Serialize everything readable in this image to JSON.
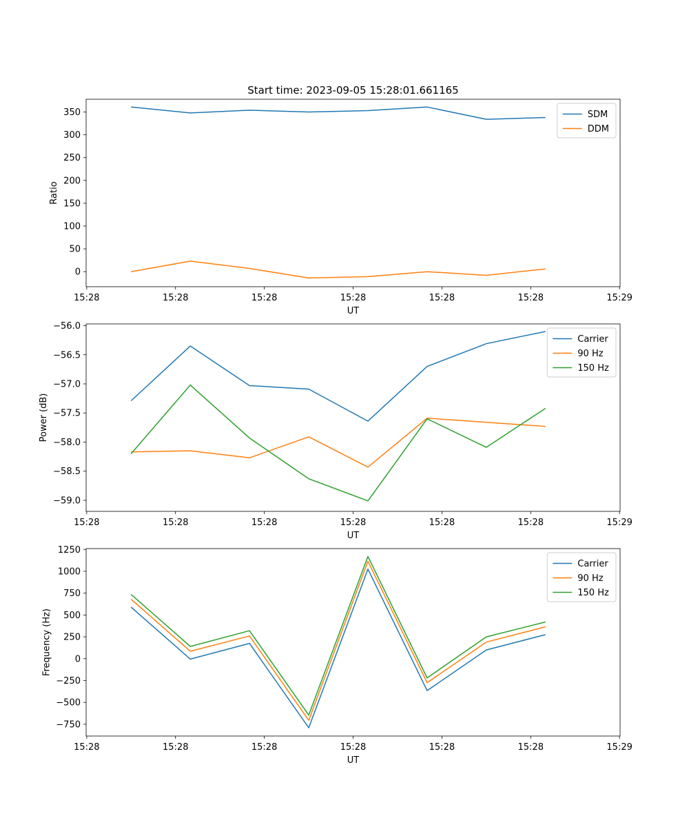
{
  "title": "Start time: 2023-09-05 15:28:01.661165",
  "colors": {
    "series": [
      "#1f77b4",
      "#ff7f0e",
      "#2ca02c"
    ]
  },
  "chart_data": [
    {
      "type": "line",
      "title": "Start time: 2023-09-05 15:28:01.661165",
      "xlabel": "UT",
      "ylabel": "Ratio",
      "x": [
        0,
        1,
        2,
        3,
        4,
        5,
        6,
        7
      ],
      "xlim": [
        -0.76,
        8.26
      ],
      "xticks": [
        -0.75,
        0.75,
        2.25,
        3.75,
        5.25,
        6.75,
        8.25
      ],
      "xtick_labels": [
        "15:28",
        "15:28",
        "15:28",
        "15:28",
        "15:28",
        "15:28",
        "15:29"
      ],
      "ylim": [
        -33,
        378
      ],
      "yticks": [
        0,
        50,
        100,
        150,
        200,
        250,
        300,
        350
      ],
      "ytick_labels": [
        "0",
        "50",
        "100",
        "150",
        "200",
        "250",
        "300",
        "350"
      ],
      "legend_position": "top-right",
      "series": [
        {
          "name": "SDM",
          "values": [
            361,
            348,
            354,
            350,
            353,
            361,
            334,
            338
          ]
        },
        {
          "name": "DDM",
          "values": [
            0,
            23,
            7,
            -14,
            -11,
            0,
            -8,
            6
          ]
        }
      ]
    },
    {
      "type": "line",
      "xlabel": "UT",
      "ylabel": "Power (dB)",
      "x": [
        0,
        1,
        2,
        3,
        4,
        5,
        6,
        7
      ],
      "xlim": [
        -0.76,
        8.26
      ],
      "xticks": [
        -0.75,
        0.75,
        2.25,
        3.75,
        5.25,
        6.75,
        8.25
      ],
      "xtick_labels": [
        "15:28",
        "15:28",
        "15:28",
        "15:28",
        "15:28",
        "15:28",
        "15:29"
      ],
      "ylim": [
        -59.19,
        -55.97
      ],
      "yticks": [
        -59.0,
        -58.5,
        -58.0,
        -57.5,
        -57.0,
        -56.5,
        -56.0
      ],
      "ytick_labels": [
        "−59.0",
        "−58.5",
        "−58.0",
        "−57.5",
        "−57.0",
        "−56.5",
        "−56.0"
      ],
      "legend_position": "top-right",
      "series": [
        {
          "name": "Carrier",
          "values": [
            -57.29,
            -56.35,
            -57.03,
            -57.09,
            -57.64,
            -56.7,
            -56.31,
            -56.1
          ]
        },
        {
          "name": "90 Hz",
          "values": [
            -58.17,
            -58.15,
            -58.27,
            -57.91,
            -58.43,
            -57.59,
            -57.66,
            -57.73
          ]
        },
        {
          "name": "150 Hz",
          "values": [
            -58.2,
            -57.02,
            -57.93,
            -58.63,
            -59.01,
            -57.6,
            -58.09,
            -57.42
          ]
        }
      ]
    },
    {
      "type": "line",
      "xlabel": "UT",
      "ylabel": "Frequency (Hz)",
      "x": [
        0,
        1,
        2,
        3,
        4,
        5,
        6,
        7
      ],
      "xlim": [
        -0.76,
        8.26
      ],
      "xticks": [
        -0.75,
        0.75,
        2.25,
        3.75,
        5.25,
        6.75,
        8.25
      ],
      "xtick_labels": [
        "15:28",
        "15:28",
        "15:28",
        "15:28",
        "15:28",
        "15:28",
        "15:29"
      ],
      "ylim": [
        -885,
        1260
      ],
      "yticks": [
        -750,
        -500,
        -250,
        0,
        250,
        500,
        750,
        1000,
        1250
      ],
      "ytick_labels": [
        "−750",
        "−500",
        "−250",
        "0",
        "250",
        "500",
        "750",
        "1000",
        "1250"
      ],
      "legend_position": "top-right",
      "series": [
        {
          "name": "Carrier",
          "values": [
            590,
            -5,
            175,
            -790,
            1025,
            -365,
            100,
            275
          ]
        },
        {
          "name": "90 Hz",
          "values": [
            680,
            85,
            260,
            -705,
            1115,
            -275,
            190,
            365
          ]
        },
        {
          "name": "150 Hz",
          "values": [
            735,
            140,
            320,
            -645,
            1170,
            -220,
            250,
            420
          ]
        }
      ]
    }
  ]
}
